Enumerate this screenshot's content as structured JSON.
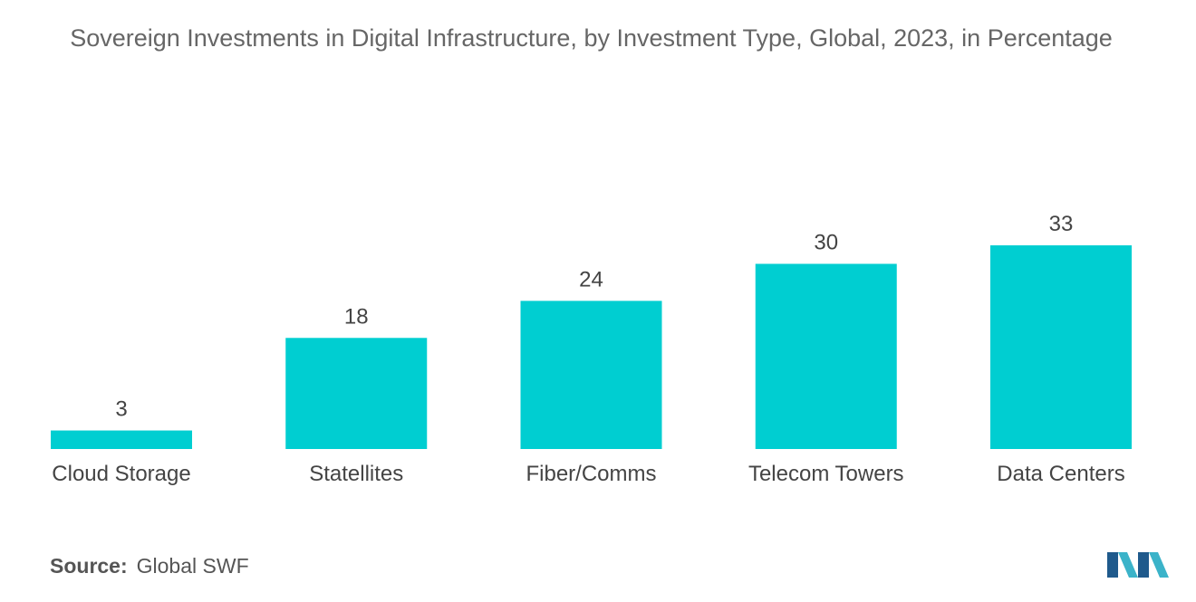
{
  "chart_data": {
    "type": "bar",
    "title": "Sovereign Investments in Digital Infrastructure, by Investment Type, Global, 2023, in Percentage",
    "categories": [
      "Cloud Storage",
      "Statellites",
      "Fiber/Comms",
      "Telecom Towers",
      "Data Centers"
    ],
    "values": [
      3,
      18,
      24,
      30,
      33
    ],
    "xlabel": "",
    "ylabel": "",
    "ylim": [
      0,
      33
    ],
    "grid": false,
    "bar_color": "#00CED1"
  },
  "source": {
    "label": "Source:",
    "value": "Global SWF"
  },
  "logo": {
    "icon": "mordor-intelligence-logo-icon",
    "colors": [
      "#1F5A8C",
      "#3BB3C9"
    ]
  }
}
